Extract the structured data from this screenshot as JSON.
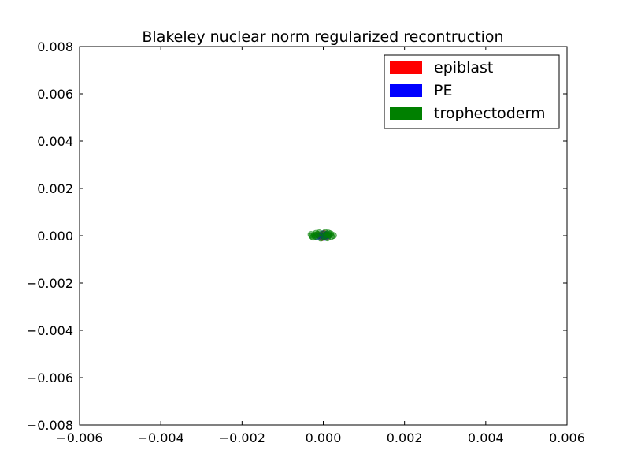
{
  "chart_data": {
    "type": "scatter",
    "title": "Blakeley nuclear norm regularized recontruction",
    "xlabel": "",
    "ylabel": "",
    "xlim": [
      -0.006,
      0.006
    ],
    "ylim": [
      -0.008,
      0.008
    ],
    "x_ticks": [
      -0.006,
      -0.004,
      -0.002,
      0.0,
      0.002,
      0.004,
      0.006
    ],
    "x_tick_labels": [
      "−0.006",
      "−0.004",
      "−0.002",
      "0.000",
      "0.002",
      "0.004",
      "0.006"
    ],
    "y_ticks": [
      0.008,
      0.006,
      0.004,
      0.002,
      0.0,
      -0.002,
      -0.004,
      -0.006,
      -0.008
    ],
    "y_tick_labels": [
      "0.008",
      "0.006",
      "0.004",
      "0.002",
      "0.000",
      "−0.002",
      "−0.004",
      "−0.006",
      "−0.008"
    ],
    "grid": false,
    "legend_position": "top-right",
    "series": [
      {
        "name": "epiblast",
        "color": "#ff0000",
        "points": [
          {
            "x": 0.0,
            "y": 5e-05
          },
          {
            "x": -5e-05,
            "y": -3e-05
          },
          {
            "x": 4e-05,
            "y": 1e-05
          },
          {
            "x": -0.00012,
            "y": 2e-05
          },
          {
            "x": 8e-05,
            "y": -5e-05
          },
          {
            "x": 2e-05,
            "y": 9e-05
          },
          {
            "x": -3e-05,
            "y": -8e-05
          },
          {
            "x": 0.0001,
            "y": 3e-05
          }
        ]
      },
      {
        "name": "PE",
        "color": "#0000ff",
        "points": [
          {
            "x": 6e-05,
            "y": 2e-05
          },
          {
            "x": -8e-05,
            "y": -1e-05
          },
          {
            "x": 3e-05,
            "y": -7e-05
          },
          {
            "x": -2e-05,
            "y": 8e-05
          },
          {
            "x": 0.00012,
            "y": 0.0
          },
          {
            "x": -0.00015,
            "y": -4e-05
          },
          {
            "x": 9e-05,
            "y": 7e-05
          },
          {
            "x": 1e-05,
            "y": -2e-05
          }
        ]
      },
      {
        "name": "trophectoderm",
        "color": "#008000",
        "points": [
          {
            "x": -0.0003,
            "y": 5e-05
          },
          {
            "x": -0.00025,
            "y": -6e-05
          },
          {
            "x": -0.00018,
            "y": 0.0001
          },
          {
            "x": 0.00015,
            "y": 4e-05
          },
          {
            "x": 0.0002,
            "y": -3e-05
          },
          {
            "x": -0.0001,
            "y": 0.00012
          },
          {
            "x": 5e-05,
            "y": 0.00014
          },
          {
            "x": -0.0002,
            "y": -2e-05
          },
          {
            "x": 0.00018,
            "y": 8e-05
          },
          {
            "x": -6e-05,
            "y": -0.0001
          },
          {
            "x": 0.0001,
            "y": -9e-05
          },
          {
            "x": -0.00022,
            "y": 3e-05
          },
          {
            "x": 0.00025,
            "y": 1e-05
          },
          {
            "x": 2e-05,
            "y": -4e-05
          },
          {
            "x": -0.00014,
            "y": 6e-05
          },
          {
            "x": 0.00013,
            "y": 0.00011
          },
          {
            "x": -0.00028,
            "y": -1e-05
          },
          {
            "x": 7e-05,
            "y": 4e-05
          }
        ]
      }
    ]
  }
}
